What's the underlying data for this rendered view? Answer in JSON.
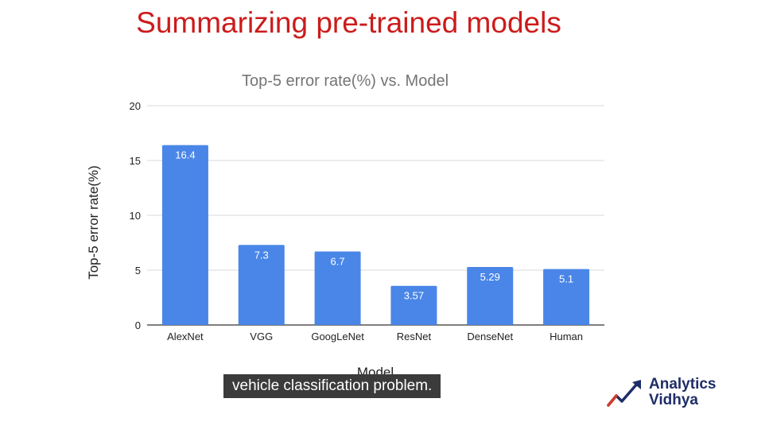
{
  "slide": {
    "title": "Summarizing pre-trained models",
    "caption": "vehicle classification problem."
  },
  "logo": {
    "line1": "Analytics",
    "line2": "Vidhya"
  },
  "colors": {
    "title": "#cc1b1b",
    "bar": "#4a86e8",
    "logo": "#1f2d68",
    "logo_accent": "#d33a2c"
  },
  "chart_data": {
    "type": "bar",
    "title": "Top-5 error rate(%) vs. Model",
    "xlabel": "Model",
    "ylabel": "Top-5 error rate(%)",
    "categories": [
      "AlexNet",
      "VGG",
      "GoogLeNet",
      "ResNet",
      "DenseNet",
      "Human"
    ],
    "values": [
      16.4,
      7.3,
      6.7,
      3.57,
      5.29,
      5.1
    ],
    "data_labels": [
      "16.4",
      "7.3",
      "6.7",
      "3.57",
      "5.29",
      "5.1"
    ],
    "ylim": [
      0,
      20
    ],
    "yticks": [
      0,
      5,
      10,
      15,
      20
    ],
    "grid": true,
    "legend": "none"
  }
}
